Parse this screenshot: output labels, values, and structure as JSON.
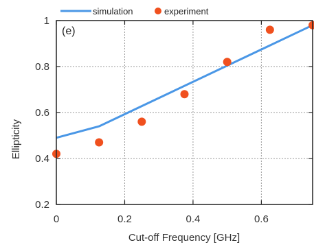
{
  "chart_data": {
    "type": "line",
    "panel_label": "(e)",
    "xlabel": "Cut-off Frequency [GHz]",
    "ylabel": "Ellipticity",
    "xlim": [
      0,
      0.75
    ],
    "ylim": [
      0.2,
      1.0
    ],
    "x_ticks": [
      0,
      0.2,
      0.4,
      0.6
    ],
    "x_tick_labels": [
      "0",
      "0.2",
      "0.4",
      "0.6"
    ],
    "y_ticks": [
      0.2,
      0.4,
      0.6,
      0.8,
      1.0
    ],
    "y_tick_labels": [
      "0.2",
      "0.4",
      "0.6",
      "0.8",
      "1"
    ],
    "grid": true,
    "legend_position": "top",
    "series": [
      {
        "name": "simulation",
        "kind": "line",
        "color": "#4a97e6",
        "x": [
          0,
          0.125,
          0.75
        ],
        "y": [
          0.49,
          0.54,
          0.98
        ]
      },
      {
        "name": "experiment",
        "kind": "scatter",
        "color": "#f0501e",
        "x": [
          0,
          0.125,
          0.25,
          0.375,
          0.5,
          0.625,
          0.75
        ],
        "y": [
          0.42,
          0.47,
          0.56,
          0.68,
          0.82,
          0.96,
          0.98
        ]
      }
    ]
  }
}
